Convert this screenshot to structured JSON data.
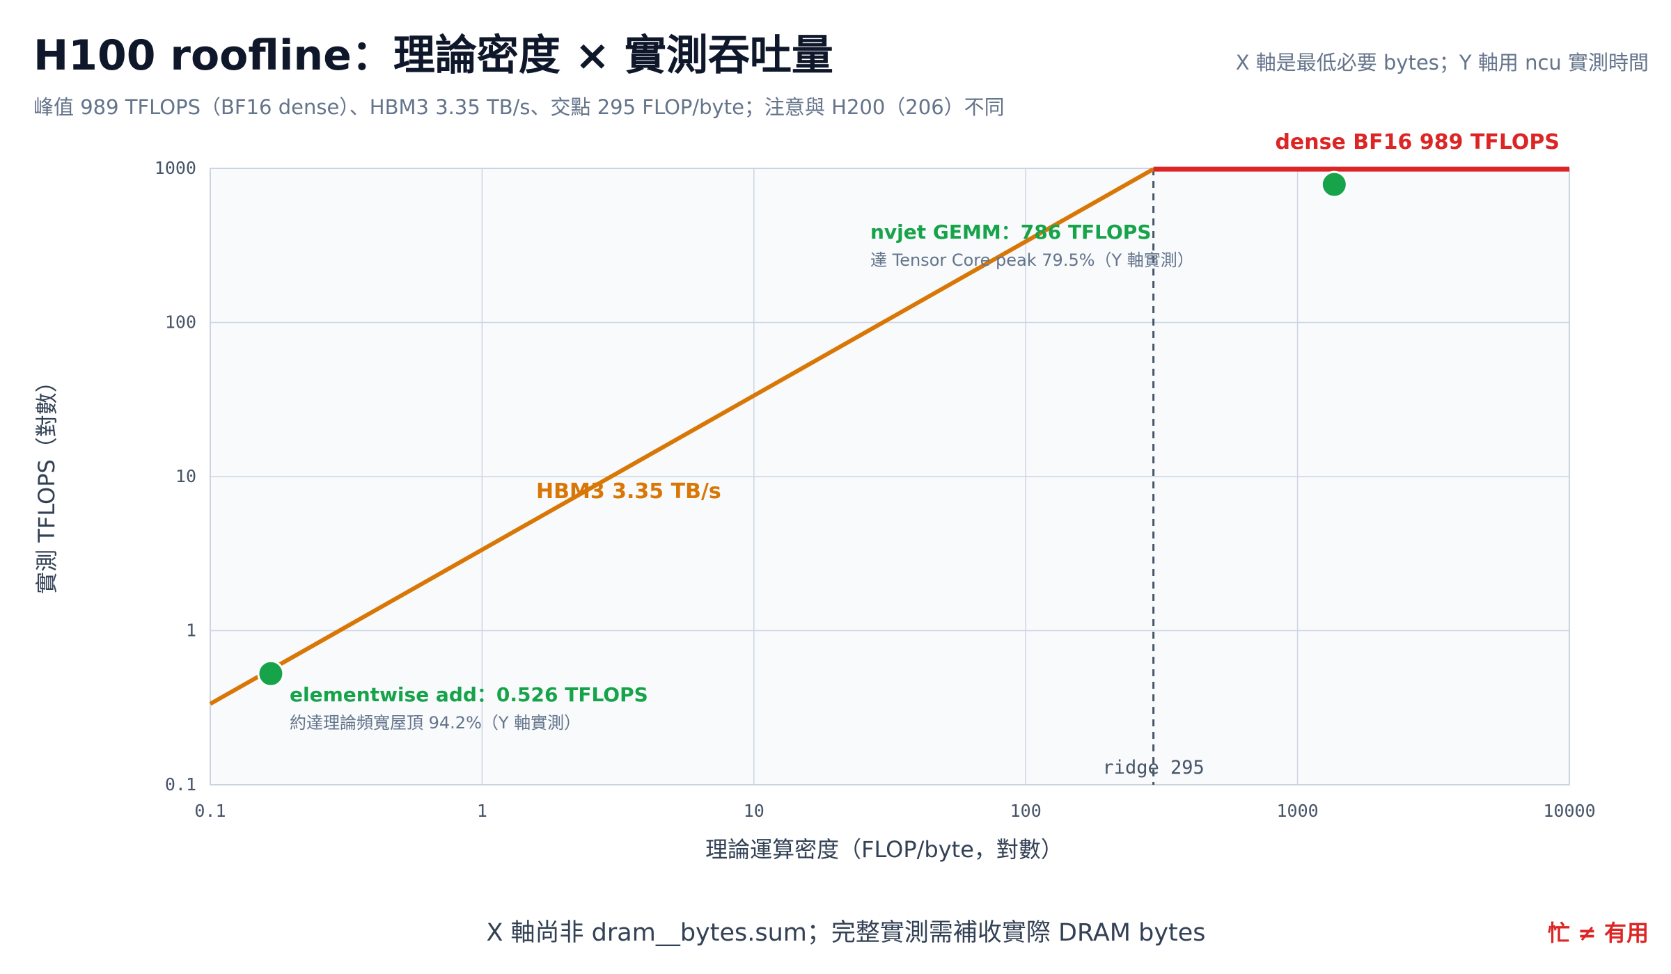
{
  "header": {
    "title": "H100 roofline：理論密度 × 實測吞吐量",
    "subtitle": "峰值 989 TFLOPS（BF16 dense）、HBM3 3.35 TB/s、交點 295 FLOP/byte；注意與 H200（206）不同",
    "note_right": "X 軸是最低必要 bytes；Y 軸用 ncu 實測時間"
  },
  "footer": {
    "note": "X 軸尚非 dram__bytes.sum；完整實測需補收實際 DRAM bytes",
    "tag": "忙 ≠ 有用"
  },
  "chart_data": {
    "type": "line",
    "xscale": "log",
    "yscale": "log",
    "xlim": [
      0.1,
      10000
    ],
    "ylim": [
      0.1,
      1000
    ],
    "x_ticks": [
      "0.1",
      "1",
      "10",
      "100",
      "1000",
      "10000"
    ],
    "y_ticks": [
      "0.1",
      "1",
      "10",
      "100",
      "1000"
    ],
    "xlabel": "理論運算密度（FLOP/byte，對數）",
    "ylabel": "實測 TFLOPS（對數）",
    "grid": true,
    "ridge": {
      "x": 295,
      "label": "ridge 295"
    },
    "series": [
      {
        "name": "HBM3 3.35 TB/s",
        "label": "HBM3 3.35 TB/s",
        "color": "#d97706",
        "x": [
          0.1,
          295
        ],
        "y": [
          0.335,
          989
        ]
      },
      {
        "name": "dense BF16 989 TFLOPS",
        "label": "dense BF16 989 TFLOPS",
        "color": "#dc2626",
        "x": [
          295,
          10000
        ],
        "y": [
          989,
          989
        ]
      }
    ],
    "points": [
      {
        "x": 0.167,
        "y": 0.526,
        "color": "#16a34a",
        "label": "elementwise add：0.526 TFLOPS",
        "sublabel": "約達理論頻寬屋頂 94.2%（Y 軸實測）"
      },
      {
        "x": 1365,
        "y": 786,
        "color": "#16a34a",
        "label": "nvjet GEMM：786 TFLOPS",
        "sublabel": "達 Tensor Core peak 79.5%（Y 軸實測）"
      }
    ]
  }
}
